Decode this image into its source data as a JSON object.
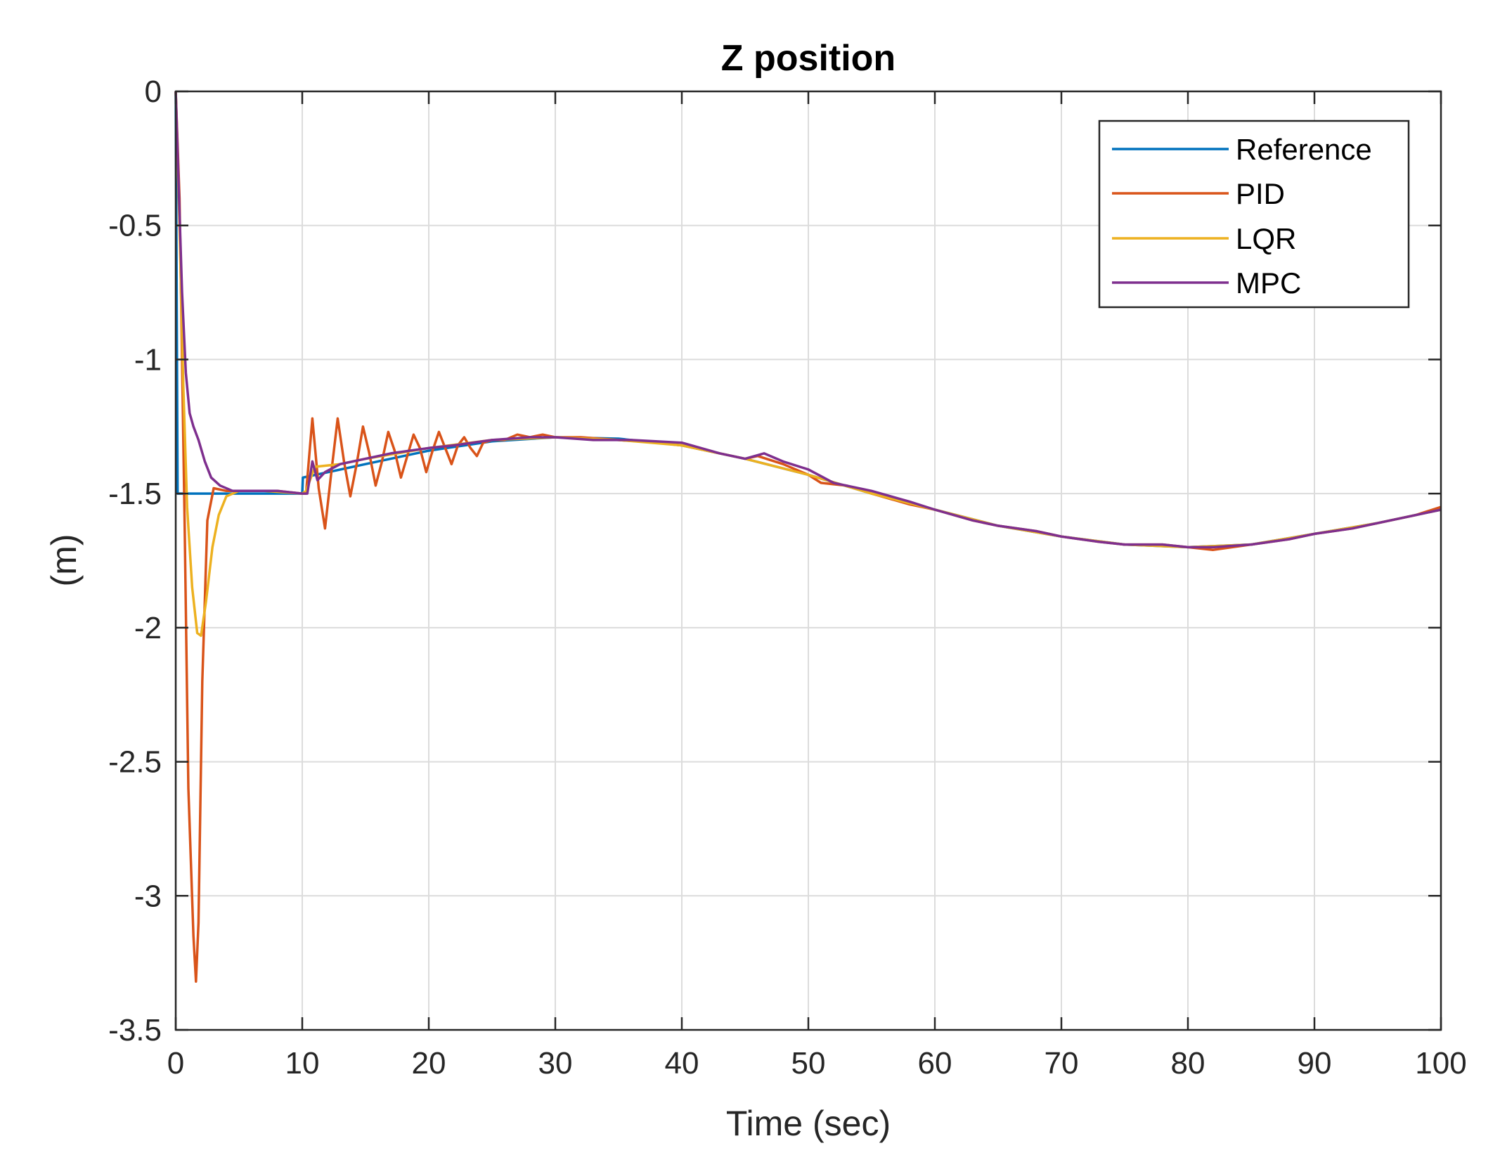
{
  "chart_data": {
    "type": "line",
    "title": "Z position",
    "xlabel": "Time (sec)",
    "ylabel": "(m)",
    "xlim": [
      0,
      100
    ],
    "ylim": [
      -3.5,
      0
    ],
    "grid": true,
    "legend_position": "top-right",
    "x_ticks": [
      0,
      10,
      20,
      30,
      40,
      50,
      60,
      70,
      80,
      90,
      100
    ],
    "x_tick_labels": [
      "0",
      "10",
      "20",
      "30",
      "40",
      "50",
      "60",
      "70",
      "80",
      "90",
      "100"
    ],
    "y_ticks": [
      0,
      -0.5,
      -1,
      -1.5,
      -2,
      -2.5,
      -3,
      -3.5
    ],
    "y_tick_labels": [
      "0",
      "-0.5",
      "-1",
      "-1.5",
      "-2",
      "-2.5",
      "-3",
      "-3.5"
    ],
    "series": [
      {
        "name": "Reference",
        "color": "#0072BD",
        "points": [
          [
            0,
            0
          ],
          [
            0.15,
            -1.5
          ],
          [
            10,
            -1.5
          ],
          [
            10.05,
            -1.44
          ],
          [
            15,
            -1.39
          ],
          [
            20,
            -1.34
          ],
          [
            25,
            -1.305
          ],
          [
            30,
            -1.29
          ],
          [
            35,
            -1.295
          ],
          [
            40,
            -1.32
          ],
          [
            45,
            -1.37
          ],
          [
            50,
            -1.43
          ],
          [
            55,
            -1.5
          ],
          [
            60,
            -1.56
          ],
          [
            65,
            -1.62
          ],
          [
            70,
            -1.66
          ],
          [
            75,
            -1.69
          ],
          [
            80,
            -1.7
          ],
          [
            85,
            -1.69
          ],
          [
            90,
            -1.65
          ],
          [
            95,
            -1.61
          ],
          [
            100,
            -1.56
          ]
        ]
      },
      {
        "name": "PID",
        "color": "#D95319",
        "points": [
          [
            0,
            0
          ],
          [
            0.3,
            -0.4
          ],
          [
            0.7,
            -1.6
          ],
          [
            1.0,
            -2.6
          ],
          [
            1.4,
            -3.15
          ],
          [
            1.6,
            -3.32
          ],
          [
            1.8,
            -3.1
          ],
          [
            2.1,
            -2.2
          ],
          [
            2.5,
            -1.6
          ],
          [
            3.0,
            -1.48
          ],
          [
            4,
            -1.49
          ],
          [
            6,
            -1.49
          ],
          [
            8,
            -1.49
          ],
          [
            10,
            -1.5
          ],
          [
            10.3,
            -1.5
          ],
          [
            10.8,
            -1.22
          ],
          [
            11.3,
            -1.48
          ],
          [
            11.8,
            -1.63
          ],
          [
            12.3,
            -1.42
          ],
          [
            12.8,
            -1.22
          ],
          [
            13.3,
            -1.38
          ],
          [
            13.8,
            -1.51
          ],
          [
            14.3,
            -1.39
          ],
          [
            14.8,
            -1.25
          ],
          [
            15.3,
            -1.35
          ],
          [
            15.8,
            -1.47
          ],
          [
            16.3,
            -1.38
          ],
          [
            16.8,
            -1.27
          ],
          [
            17.3,
            -1.34
          ],
          [
            17.8,
            -1.44
          ],
          [
            18.3,
            -1.36
          ],
          [
            18.8,
            -1.28
          ],
          [
            19.3,
            -1.33
          ],
          [
            19.8,
            -1.42
          ],
          [
            20.3,
            -1.34
          ],
          [
            20.8,
            -1.27
          ],
          [
            21.3,
            -1.33
          ],
          [
            21.8,
            -1.39
          ],
          [
            22.3,
            -1.32
          ],
          [
            22.8,
            -1.29
          ],
          [
            23.3,
            -1.33
          ],
          [
            23.8,
            -1.36
          ],
          [
            24.3,
            -1.31
          ],
          [
            25,
            -1.3
          ],
          [
            26,
            -1.3
          ],
          [
            27,
            -1.28
          ],
          [
            28,
            -1.29
          ],
          [
            29,
            -1.28
          ],
          [
            30,
            -1.29
          ],
          [
            32,
            -1.29
          ],
          [
            35,
            -1.3
          ],
          [
            38,
            -1.31
          ],
          [
            40,
            -1.32
          ],
          [
            43,
            -1.35
          ],
          [
            45,
            -1.37
          ],
          [
            46,
            -1.36
          ],
          [
            48,
            -1.39
          ],
          [
            50,
            -1.43
          ],
          [
            51,
            -1.46
          ],
          [
            53,
            -1.47
          ],
          [
            55,
            -1.5
          ],
          [
            58,
            -1.54
          ],
          [
            60,
            -1.56
          ],
          [
            63,
            -1.6
          ],
          [
            65,
            -1.62
          ],
          [
            68,
            -1.64
          ],
          [
            70,
            -1.66
          ],
          [
            73,
            -1.68
          ],
          [
            75,
            -1.69
          ],
          [
            78,
            -1.69
          ],
          [
            80,
            -1.7
          ],
          [
            82,
            -1.71
          ],
          [
            85,
            -1.69
          ],
          [
            88,
            -1.67
          ],
          [
            90,
            -1.65
          ],
          [
            93,
            -1.63
          ],
          [
            95,
            -1.61
          ],
          [
            98,
            -1.58
          ],
          [
            100,
            -1.55
          ]
        ]
      },
      {
        "name": "LQR",
        "color": "#EDB120",
        "points": [
          [
            0,
            0
          ],
          [
            0.3,
            -0.5
          ],
          [
            0.6,
            -1.1
          ],
          [
            0.9,
            -1.55
          ],
          [
            1.3,
            -1.85
          ],
          [
            1.7,
            -2.02
          ],
          [
            2.0,
            -2.03
          ],
          [
            2.4,
            -1.9
          ],
          [
            2.9,
            -1.7
          ],
          [
            3.4,
            -1.58
          ],
          [
            4.0,
            -1.51
          ],
          [
            5,
            -1.49
          ],
          [
            7,
            -1.49
          ],
          [
            10,
            -1.5
          ],
          [
            10.3,
            -1.49
          ],
          [
            11,
            -1.4
          ],
          [
            13,
            -1.39
          ],
          [
            15,
            -1.37
          ],
          [
            20,
            -1.33
          ],
          [
            25,
            -1.3
          ],
          [
            30,
            -1.29
          ],
          [
            35,
            -1.3
          ],
          [
            40,
            -1.32
          ],
          [
            45,
            -1.37
          ],
          [
            50,
            -1.43
          ],
          [
            55,
            -1.5
          ],
          [
            60,
            -1.56
          ],
          [
            65,
            -1.62
          ],
          [
            70,
            -1.66
          ],
          [
            75,
            -1.69
          ],
          [
            80,
            -1.7
          ],
          [
            85,
            -1.69
          ],
          [
            90,
            -1.65
          ],
          [
            95,
            -1.61
          ],
          [
            100,
            -1.56
          ]
        ]
      },
      {
        "name": "MPC",
        "color": "#7E2F8E",
        "points": [
          [
            0,
            0
          ],
          [
            0.2,
            -0.3
          ],
          [
            0.5,
            -0.75
          ],
          [
            0.8,
            -1.05
          ],
          [
            1.1,
            -1.2
          ],
          [
            1.4,
            -1.25
          ],
          [
            1.8,
            -1.3
          ],
          [
            2.3,
            -1.38
          ],
          [
            2.8,
            -1.44
          ],
          [
            3.5,
            -1.47
          ],
          [
            4.5,
            -1.49
          ],
          [
            6,
            -1.49
          ],
          [
            8,
            -1.49
          ],
          [
            10,
            -1.5
          ],
          [
            10.4,
            -1.5
          ],
          [
            10.8,
            -1.38
          ],
          [
            11.2,
            -1.45
          ],
          [
            11.8,
            -1.42
          ],
          [
            13,
            -1.39
          ],
          [
            15,
            -1.37
          ],
          [
            17,
            -1.35
          ],
          [
            20,
            -1.33
          ],
          [
            22,
            -1.32
          ],
          [
            25,
            -1.3
          ],
          [
            28,
            -1.29
          ],
          [
            30,
            -1.29
          ],
          [
            33,
            -1.3
          ],
          [
            36,
            -1.3
          ],
          [
            40,
            -1.31
          ],
          [
            43,
            -1.35
          ],
          [
            45,
            -1.37
          ],
          [
            46.5,
            -1.35
          ],
          [
            48,
            -1.38
          ],
          [
            50,
            -1.41
          ],
          [
            52,
            -1.46
          ],
          [
            55,
            -1.49
          ],
          [
            58,
            -1.53
          ],
          [
            60,
            -1.56
          ],
          [
            63,
            -1.6
          ],
          [
            65,
            -1.62
          ],
          [
            68,
            -1.64
          ],
          [
            70,
            -1.66
          ],
          [
            73,
            -1.68
          ],
          [
            75,
            -1.69
          ],
          [
            78,
            -1.69
          ],
          [
            80,
            -1.7
          ],
          [
            82,
            -1.7
          ],
          [
            85,
            -1.69
          ],
          [
            88,
            -1.67
          ],
          [
            90,
            -1.65
          ],
          [
            93,
            -1.63
          ],
          [
            95,
            -1.61
          ],
          [
            98,
            -1.58
          ],
          [
            100,
            -1.56
          ]
        ]
      }
    ]
  }
}
